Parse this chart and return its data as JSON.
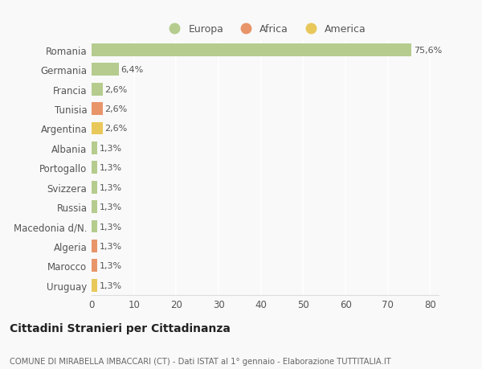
{
  "categories": [
    "Romania",
    "Germania",
    "Francia",
    "Tunisia",
    "Argentina",
    "Albania",
    "Portogallo",
    "Svizzera",
    "Russia",
    "Macedonia d/N.",
    "Algeria",
    "Marocco",
    "Uruguay"
  ],
  "values": [
    75.6,
    6.4,
    2.6,
    2.6,
    2.6,
    1.3,
    1.3,
    1.3,
    1.3,
    1.3,
    1.3,
    1.3,
    1.3
  ],
  "colors": [
    "#b5cc8e",
    "#b5cc8e",
    "#b5cc8e",
    "#e8956a",
    "#e8c85a",
    "#b5cc8e",
    "#b5cc8e",
    "#b5cc8e",
    "#b5cc8e",
    "#b5cc8e",
    "#e8956a",
    "#e8956a",
    "#e8c85a"
  ],
  "labels": [
    "75,6%",
    "6,4%",
    "2,6%",
    "2,6%",
    "2,6%",
    "1,3%",
    "1,3%",
    "1,3%",
    "1,3%",
    "1,3%",
    "1,3%",
    "1,3%",
    "1,3%"
  ],
  "legend": [
    {
      "label": "Europa",
      "color": "#b5cc8e"
    },
    {
      "label": "Africa",
      "color": "#e8956a"
    },
    {
      "label": "America",
      "color": "#e8c85a"
    }
  ],
  "title": "Cittadini Stranieri per Cittadinanza",
  "subtitle": "COMUNE DI MIRABELLA IMBACCARI (CT) - Dati ISTAT al 1° gennaio - Elaborazione TUTTITALIA.IT",
  "xlim": [
    0,
    82
  ],
  "xticks": [
    0,
    10,
    20,
    30,
    40,
    50,
    60,
    70,
    80
  ],
  "background_color": "#f9f9f9",
  "plot_bg_color": "#f9f9f9",
  "grid_color": "#ffffff",
  "bar_height": 0.65
}
